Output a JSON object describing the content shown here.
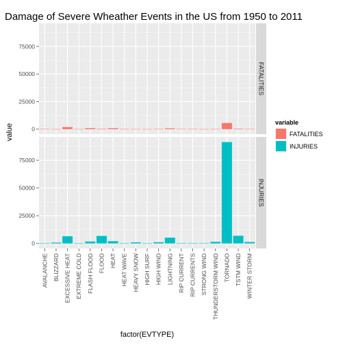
{
  "chart_data": {
    "type": "bar",
    "title": "Damage of Severe Wheather Events in the US from 1950 to 2011",
    "xlabel": "factor(EVTYPE)",
    "ylabel": "value",
    "facet_by": "variable",
    "grid": true,
    "legend_position": "right",
    "legend_title": "variable",
    "categories": [
      "AVALANCHE",
      "BLIZZARD",
      "EXCESSIVE HEAT",
      "EXTREME COLD",
      "FLASH FLOOD",
      "FLOOD",
      "HEAT",
      "HEAT WAVE",
      "HEAVY SNOW",
      "HIGH SURF",
      "HIGH WIND",
      "LIGHTNING",
      "RIP CURRENT",
      "RIP CURRENTS",
      "STRONG WIND",
      "THUNDERSTORM WIND",
      "TORNADO",
      "TSTM WIND",
      "WINTER STORM"
    ],
    "ylim": [
      -4500,
      96000
    ],
    "yticks": [
      0,
      25000,
      50000,
      75000
    ],
    "ytick_labels": [
      "0",
      "25000",
      "50000",
      "75000"
    ],
    "series": [
      {
        "name": "FATALITIES",
        "color": "#f8766d",
        "values": [
          224,
          101,
          1903,
          160,
          978,
          470,
          937,
          172,
          127,
          101,
          248,
          816,
          368,
          204,
          103,
          133,
          5633,
          504,
          206
        ]
      },
      {
        "name": "INJURIES",
        "color": "#00bfc4",
        "values": [
          170,
          805,
          6525,
          231,
          1777,
          6789,
          2100,
          309,
          1021,
          152,
          1137,
          5230,
          232,
          297,
          280,
          1488,
          91346,
          6957,
          1321
        ]
      }
    ]
  }
}
